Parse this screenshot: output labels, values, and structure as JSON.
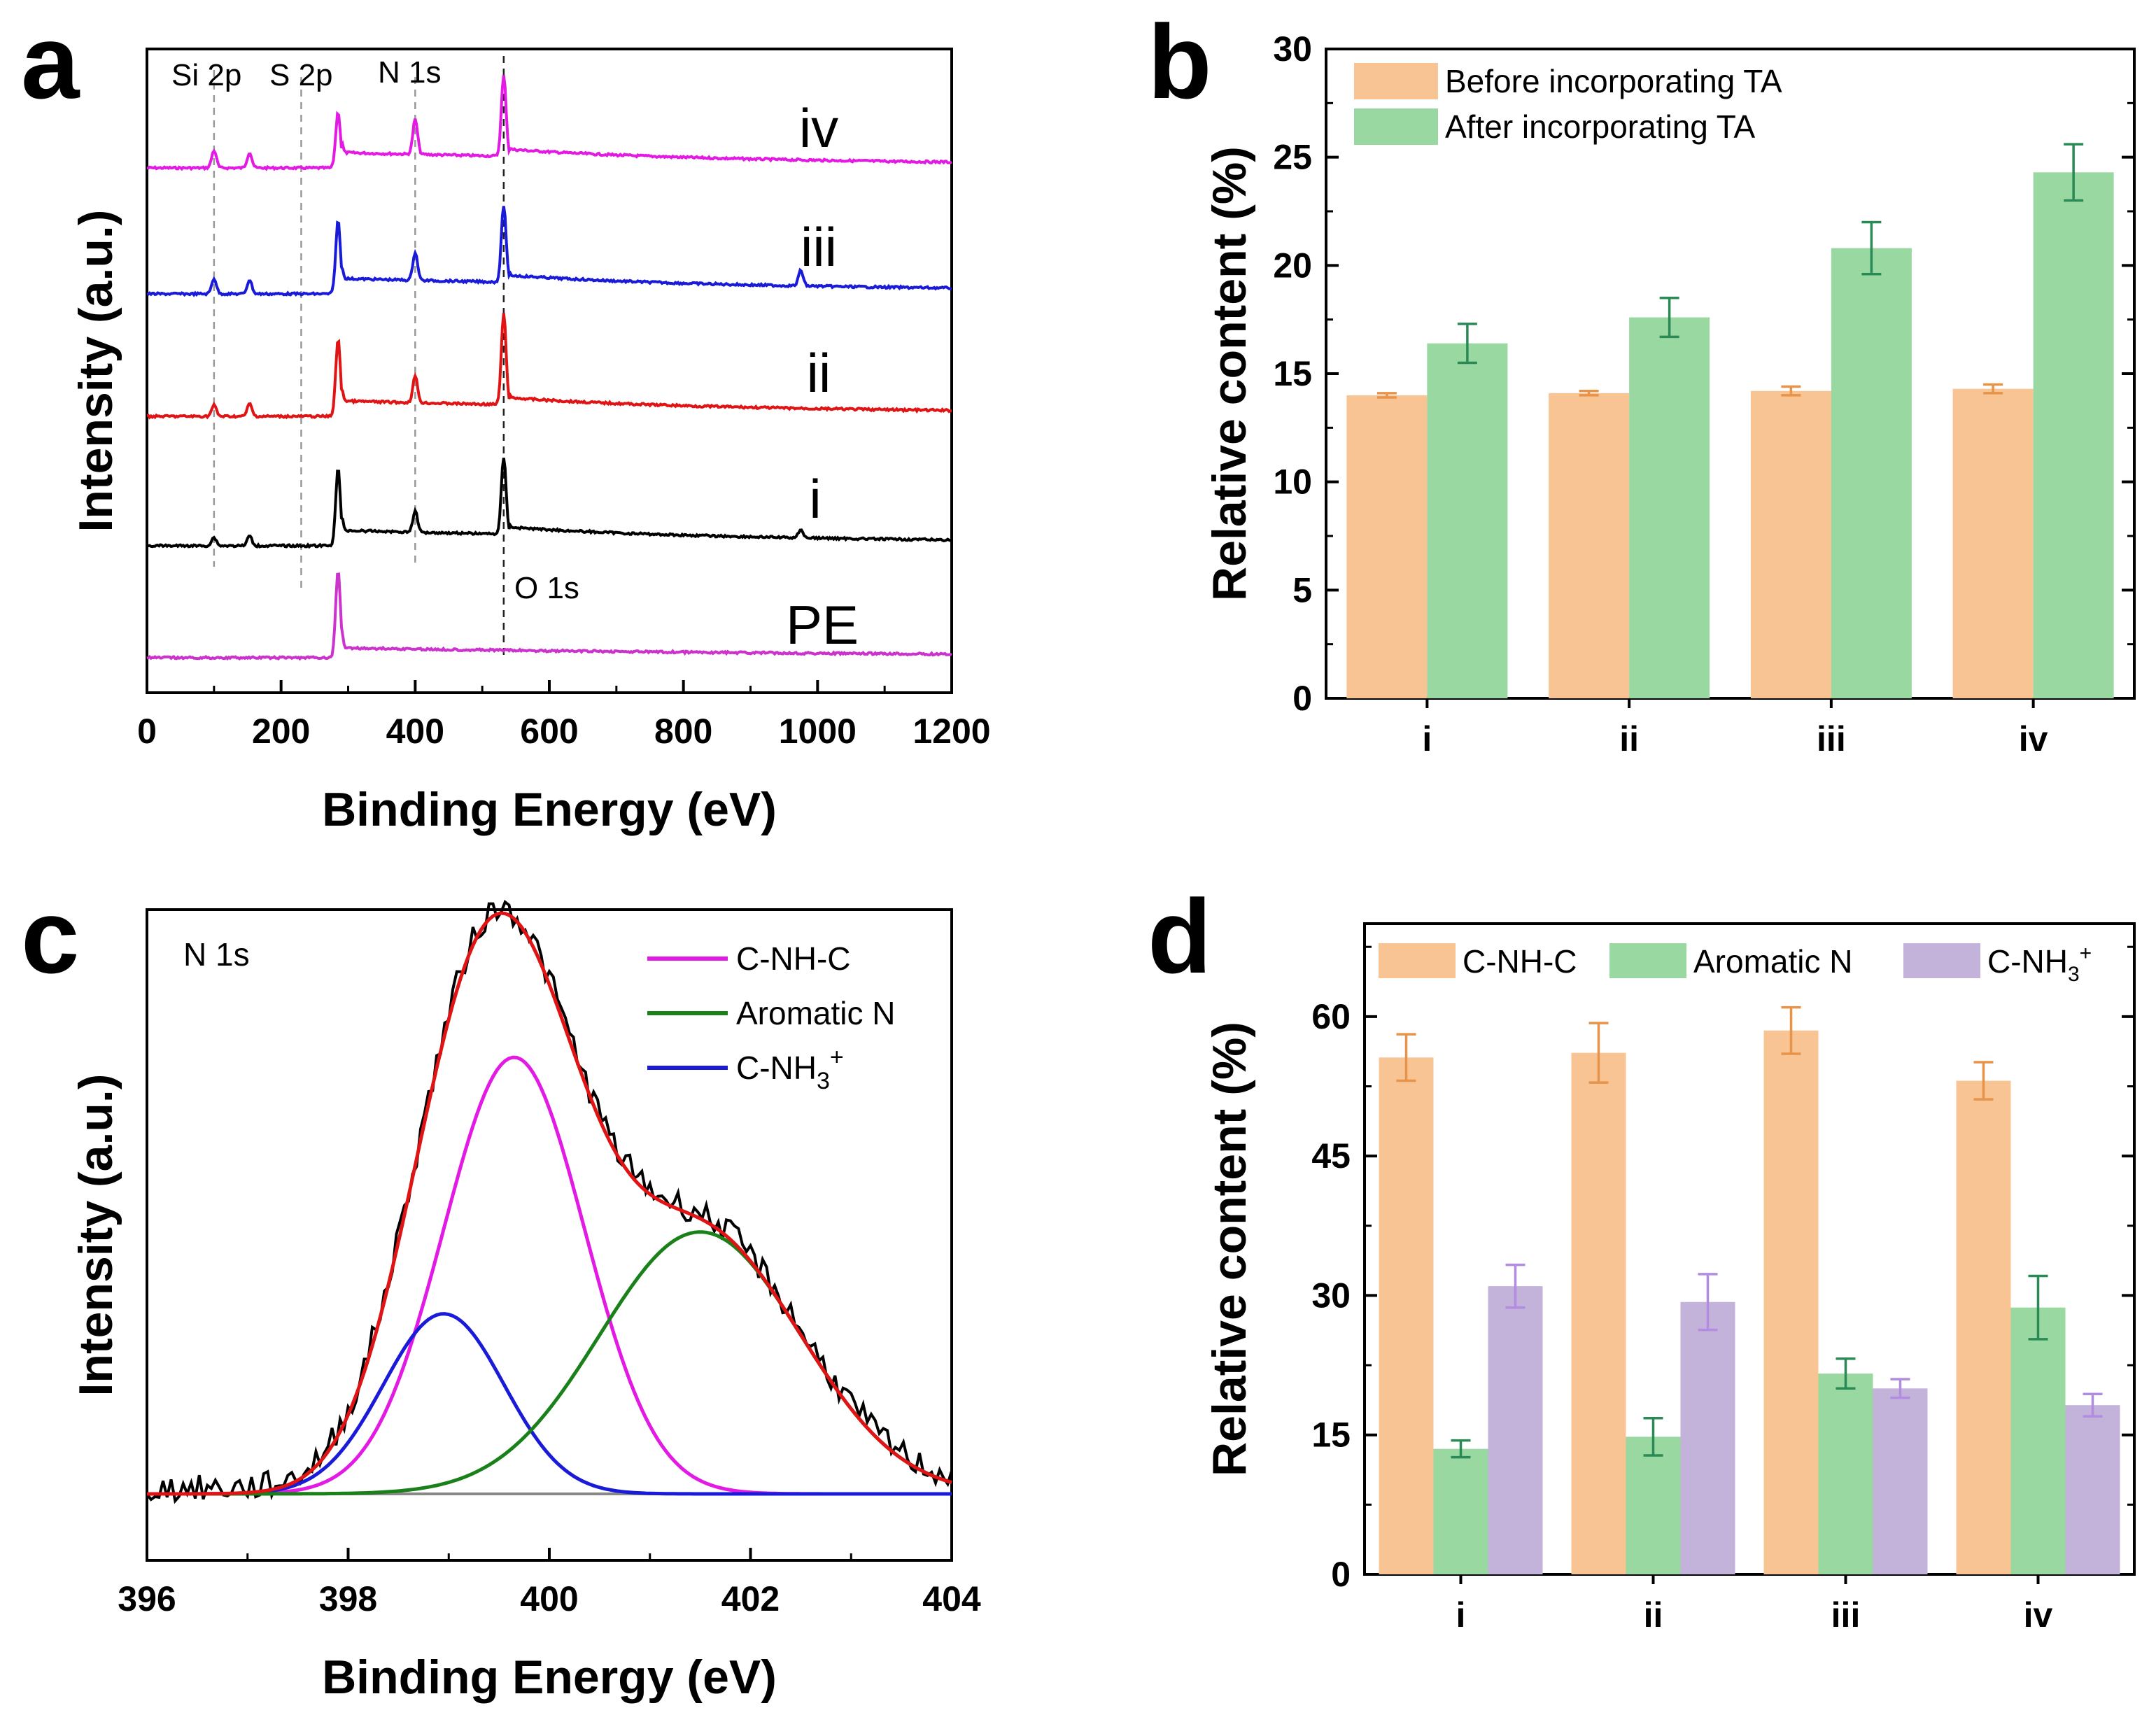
{
  "panels": {
    "a": {
      "letter": "a",
      "xlabel": "Binding Energy (eV)",
      "ylabel": "Intensity (a.u.)",
      "xticks": [
        "0",
        "200",
        "400",
        "600",
        "800",
        "1000",
        "1200"
      ],
      "annotations": [
        "Si 2p",
        "S 2p",
        "N 1s",
        "O 1s"
      ],
      "reference_lines_eV": [
        100,
        230,
        400,
        532
      ]
    },
    "b": {
      "letter": "b",
      "ylabel": "Relative content (%)",
      "yticks": [
        "0",
        "5",
        "10",
        "15",
        "20",
        "25",
        "30"
      ]
    },
    "c": {
      "letter": "c",
      "xlabel": "Binding Energy (eV)",
      "ylabel": "Intensity (a.u.)",
      "xticks": [
        "396",
        "398",
        "400",
        "402",
        "404"
      ],
      "inner_label": "N 1s",
      "legend": [
        "C-NH-C",
        "Aromatic N",
        "C-NH"
      ],
      "legend_sub": "3",
      "legend_sup": "+"
    },
    "d": {
      "letter": "d",
      "ylabel": "Relative content (%)",
      "yticks": [
        "0",
        "15",
        "30",
        "45",
        "60"
      ],
      "legend_sub": "3",
      "legend_sup": "+"
    }
  },
  "chart_data": [
    {
      "panel": "a",
      "type": "line",
      "title": "",
      "xlabel": "Binding Energy (eV)",
      "ylabel": "Intensity (a.u.)",
      "xlim": [
        0,
        1200
      ],
      "series": [
        {
          "name": "iv",
          "color": "#e31ae3"
        },
        {
          "name": "iii",
          "color": "#1a1ad9"
        },
        {
          "name": "ii",
          "color": "#e01414"
        },
        {
          "name": "i",
          "color": "#000000"
        },
        {
          "name": "PE",
          "color": "#cc33cc"
        }
      ]
    },
    {
      "panel": "b",
      "type": "bar",
      "title": "",
      "xlabel": "",
      "ylabel": "Relative content (%)",
      "ylim": [
        0,
        30
      ],
      "categories": [
        "i",
        "ii",
        "iii",
        "iv"
      ],
      "series": [
        {
          "name": "Before incorporating TA",
          "color": "#f8c494",
          "values": [
            14.0,
            14.1,
            14.2,
            14.3
          ],
          "errors": [
            0.1,
            0.1,
            0.2,
            0.2
          ]
        },
        {
          "name": "After incorporating TA",
          "color": "#99d8a0",
          "values": [
            16.4,
            17.6,
            20.8,
            24.3
          ],
          "errors": [
            0.9,
            0.9,
            1.2,
            1.3
          ]
        }
      ],
      "legend": "top-left"
    },
    {
      "panel": "c",
      "type": "line",
      "title": "",
      "xlabel": "Binding Energy (eV)",
      "ylabel": "Intensity (a.u.)",
      "xlim": [
        396,
        404
      ],
      "series": [
        {
          "name": "C-NH-C",
          "color": "#e31ae3",
          "center": 399.65,
          "sigma": 0.7,
          "height": 0.8
        },
        {
          "name": "C-NH3+",
          "color": "#1a1ad9",
          "center": 398.95,
          "sigma": 0.6,
          "height": 0.33
        },
        {
          "name": "Aromatic N",
          "color": "#1a801a",
          "center": 401.5,
          "sigma": 1.0,
          "height": 0.48
        },
        {
          "name": "Envelope",
          "color": "#e01414"
        },
        {
          "name": "Raw",
          "color": "#000000"
        },
        {
          "name": "Baseline",
          "color": "#888888"
        }
      ],
      "legend_colors": [
        "#e31ae3",
        "#1a801a",
        "#1a1ad9"
      ],
      "legend_text_colors": [
        "#e31ae3",
        "#1a1ad9",
        "#1a801a"
      ],
      "legend": "top-right"
    },
    {
      "panel": "d",
      "type": "bar",
      "title": "",
      "xlabel": "",
      "ylabel": "Relative content (%)",
      "ylim": [
        0,
        70
      ],
      "categories": [
        "i",
        "ii",
        "iii",
        "iv"
      ],
      "series": [
        {
          "name": "C-NH-C",
          "color": "#f8c494",
          "err_color": "#e8934a",
          "values": [
            55.6,
            56.1,
            58.5,
            53.1
          ],
          "errors": [
            2.5,
            3.2,
            2.5,
            2.0
          ]
        },
        {
          "name": "Aromatic N",
          "color": "#99d8a0",
          "err_color": "#2a8a55",
          "values": [
            13.5,
            14.8,
            21.6,
            28.7
          ],
          "errors": [
            0.9,
            2.0,
            1.6,
            3.4
          ]
        },
        {
          "name": "C-NH",
          "color": "#c3b2da",
          "err_color": "#b28ce0",
          "values": [
            31.0,
            29.3,
            20.0,
            18.2
          ],
          "errors": [
            2.3,
            3.0,
            1.0,
            1.2
          ]
        }
      ],
      "legend": "top"
    }
  ]
}
